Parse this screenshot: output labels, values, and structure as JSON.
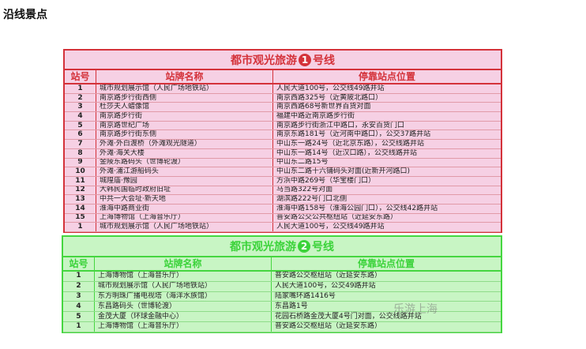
{
  "heading": "沿线景点",
  "columns": [
    "站号",
    "站牌名称",
    "停靠站点位置"
  ],
  "line1": {
    "title_pre": "都市观光旅游",
    "number": "1",
    "title_post": "号线",
    "color": "#d4323a",
    "rows": [
      [
        "1",
        "城市规划展示馆（人民广场地铁站）",
        "人民大道100号，公交线49路并站"
      ],
      [
        "2",
        "南京路步行街西侧",
        "南京西路325号（近黄陂北路口）"
      ],
      [
        "3",
        "杜莎夫人蜡像馆",
        "南京西路68号新世界百货对面"
      ],
      [
        "4",
        "南京路步行街",
        "福建中路近南京路步行街"
      ],
      [
        "5",
        "南京路世纪广场",
        "南京路步行街浙江中路口，永安百货门口"
      ],
      [
        "6",
        "南京路步行街东侧",
        "南京东路181号（近河南中路口），公交37路并站"
      ],
      [
        "7",
        "外滩·外白渡桥（外滩观光隧道）",
        "中山东一路24号（近北京东路），公交线路并站"
      ],
      [
        "8",
        "外滩·海关大楼",
        "中山东一路14号（近汉口路），公交线路并站"
      ],
      [
        "9",
        "金陵东路码头（世博轮渡）",
        "中山东二路15号"
      ],
      [
        "10",
        "外滩·浦江游船码头",
        "中山东二路十六铺码头对面(近新开河路口)"
      ],
      [
        "11",
        "城隍庙·豫园",
        "方浜中路269号（华宝楼门口）"
      ],
      [
        "12",
        "大韩民国临时政府旧址",
        "马当路322号对面"
      ],
      [
        "13",
        "中共一大会址·新天地",
        "湖滨路222号门口北侧"
      ],
      [
        "14",
        "淮海中路商业街",
        "淮海中路158号（淮海公园门口），公交线42路并站"
      ],
      [
        "15",
        "上海博物馆（上海音乐厅）",
        "普安路公交公共枢纽站（近延安东路）"
      ],
      [
        "1",
        "城市规划展示馆（人民广场地铁站）",
        "人民大道100号，公交线49路并站"
      ]
    ]
  },
  "line2": {
    "title_pre": "都市观光旅游",
    "number": "2",
    "title_post": "号线",
    "color": "#3bd33a",
    "rows": [
      [
        "1",
        "上海博物馆（上海音乐厅）",
        "普安路公交枢纽站（近延安东路）"
      ],
      [
        "2",
        "城市规划展示馆（人民广场地铁站）",
        "人民大道100号，公交49路并站"
      ],
      [
        "3",
        "东方明珠广播电视塔（海洋水族馆）",
        "陆家嘴环路1416号"
      ],
      [
        "4",
        "东昌路码头（世博轮渡）",
        "东昌路1号"
      ],
      [
        "5",
        "金茂大厦（环球金融中心）",
        "花园石桥路金茂大厦4号门对面，公交线路并站"
      ],
      [
        "1",
        "上海博物馆（上海音乐厅）",
        "普安路公交枢纽站（近延安东路）"
      ]
    ]
  },
  "watermark": "乐游上海"
}
